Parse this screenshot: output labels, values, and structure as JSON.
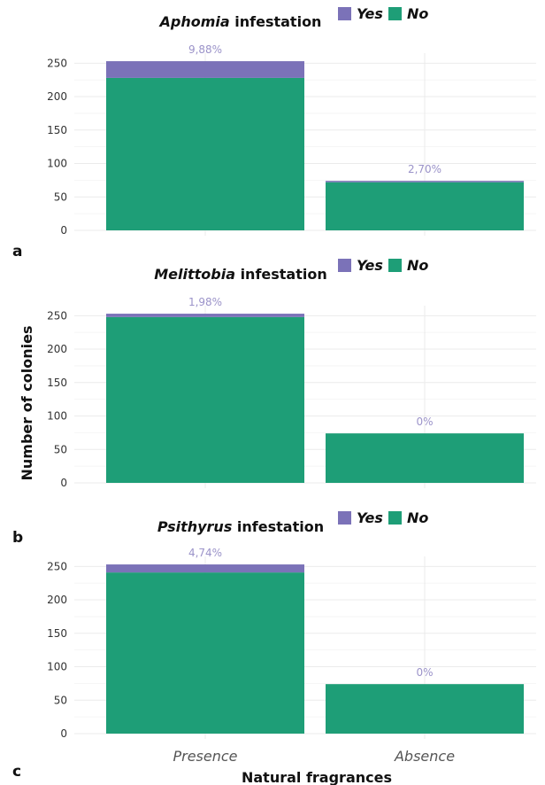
{
  "figure": {
    "ylabel": "Number of colonies",
    "xlabel": "Natural fragrances"
  },
  "colors": {
    "yes": "#7b72b8",
    "no": "#1e9e77",
    "label": "#9b93c9",
    "grid": "#ebebeb"
  },
  "chart_data": [
    {
      "type": "bar",
      "stacked": true,
      "panel_letter": "a",
      "title_italic": "Aphomia",
      "title_rest": " infestation",
      "categories": [
        "Presence",
        "Absence"
      ],
      "series": [
        {
          "name": "Yes",
          "values": [
            25,
            2
          ]
        },
        {
          "name": "No",
          "values": [
            228,
            72
          ]
        }
      ],
      "bar_labels": [
        "9,88%",
        "2,70%"
      ],
      "legend": [
        "Yes",
        "No"
      ],
      "legend_position": "top",
      "yticks": [
        0,
        50,
        100,
        150,
        200,
        250
      ],
      "ylim": [
        0,
        265
      ],
      "grid": true
    },
    {
      "type": "bar",
      "stacked": true,
      "panel_letter": "b",
      "title_italic": "Melittobia",
      "title_rest": " infestation",
      "categories": [
        "Presence",
        "Absence"
      ],
      "series": [
        {
          "name": "Yes",
          "values": [
            5,
            0
          ]
        },
        {
          "name": "No",
          "values": [
            248,
            74
          ]
        }
      ],
      "bar_labels": [
        "1,98%",
        "0%"
      ],
      "legend": [
        "Yes",
        "No"
      ],
      "legend_position": "top",
      "yticks": [
        0,
        50,
        100,
        150,
        200,
        250
      ],
      "ylim": [
        0,
        265
      ],
      "grid": true
    },
    {
      "type": "bar",
      "stacked": true,
      "panel_letter": "c",
      "title_italic": "Psithyrus",
      "title_rest": " infestation",
      "categories": [
        "Presence",
        "Absence"
      ],
      "series": [
        {
          "name": "Yes",
          "values": [
            12,
            0
          ]
        },
        {
          "name": "No",
          "values": [
            241,
            74
          ]
        }
      ],
      "bar_labels": [
        "4,74%",
        "0%"
      ],
      "legend": [
        "Yes",
        "No"
      ],
      "legend_position": "top",
      "yticks": [
        0,
        50,
        100,
        150,
        200,
        250
      ],
      "ylim": [
        0,
        265
      ],
      "grid": true
    }
  ]
}
